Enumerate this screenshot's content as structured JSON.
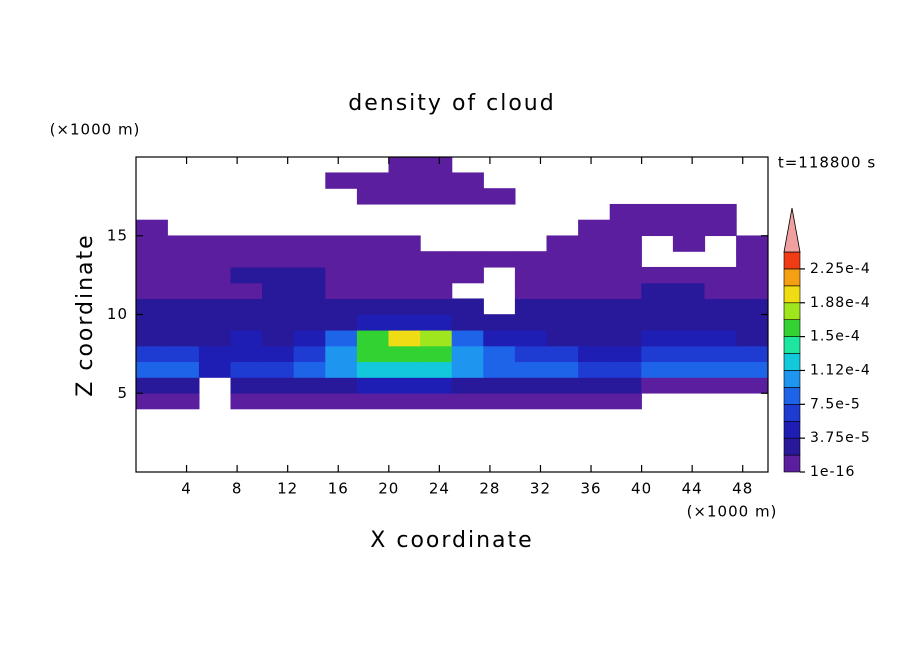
{
  "chart_data": {
    "type": "contour",
    "title": "density of cloud",
    "x_label": "X coordinate",
    "y_label": "Z coordinate",
    "x_unit": "(×1000 m)",
    "y_unit": "(×1000 m)",
    "time_label": "t=118800 s",
    "xlim": [
      0,
      50
    ],
    "ylim": [
      0,
      20
    ],
    "xticks": [
      4,
      8,
      12,
      16,
      20,
      24,
      28,
      32,
      36,
      40,
      44,
      48
    ],
    "yticks": [
      5,
      10,
      15
    ],
    "x": [
      1.25,
      3.75,
      6.25,
      8.75,
      11.25,
      13.75,
      16.25,
      18.75,
      21.25,
      23.75,
      26.25,
      28.75,
      31.25,
      33.75,
      36.25,
      38.75,
      41.25,
      43.75,
      46.25,
      48.75
    ],
    "y": [
      4.5,
      5.5,
      6.5,
      7.5,
      8.5,
      9.5,
      10.5,
      11.5,
      12.5,
      13.5,
      14.5,
      15.5,
      16.5,
      17.5,
      18.5,
      19.5
    ],
    "z": [
      [
        1e-05,
        1e-05,
        null,
        1e-05,
        1e-05,
        1e-05,
        1e-05,
        1e-05,
        1e-05,
        1e-05,
        1e-05,
        1e-05,
        1e-05,
        1e-05,
        1e-05,
        1e-05,
        null,
        null,
        null,
        null
      ],
      [
        3e-05,
        3e-05,
        null,
        2.5e-05,
        3e-05,
        3e-05,
        3.5e-05,
        4e-05,
        4e-05,
        4e-05,
        3.5e-05,
        3e-05,
        3e-05,
        3e-05,
        3e-05,
        2.5e-05,
        1e-05,
        1e-05,
        1e-05,
        1e-05
      ],
      [
        8e-05,
        8e-05,
        4e-05,
        6e-05,
        7e-05,
        8e-05,
        0.00011,
        0.00012,
        0.000125,
        0.00012,
        0.0001,
        8e-05,
        8e-05,
        8e-05,
        7e-05,
        6e-05,
        8e-05,
        9e-05,
        9e-05,
        8e-05
      ],
      [
        6e-05,
        6e-05,
        4e-05,
        5e-05,
        5.5e-05,
        7e-05,
        0.00011,
        0.00015,
        0.00016,
        0.000155,
        0.00011,
        8e-05,
        6e-05,
        6e-05,
        5e-05,
        4e-05,
        6e-05,
        7e-05,
        7e-05,
        6e-05
      ],
      [
        3.5e-05,
        3.5e-05,
        3e-05,
        4e-05,
        3e-05,
        5e-05,
        8e-05,
        0.00016,
        0.0002,
        0.000175,
        9e-05,
        5e-05,
        4e-05,
        3.5e-05,
        3e-05,
        3e-05,
        4e-05,
        4e-05,
        4e-05,
        3.5e-05
      ],
      [
        2.5e-05,
        2.5e-05,
        2.5e-05,
        2.5e-05,
        2e-05,
        3e-05,
        3.5e-05,
        4.5e-05,
        5e-05,
        4.5e-05,
        3.5e-05,
        2.5e-05,
        2.5e-05,
        3e-05,
        3e-05,
        2.5e-05,
        2.5e-05,
        2.5e-05,
        3e-05,
        3e-05
      ],
      [
        2e-05,
        2e-05,
        2e-05,
        2e-05,
        2e-05,
        2e-05,
        2.5e-05,
        2.5e-05,
        2.5e-05,
        2e-05,
        2e-05,
        null,
        2e-05,
        2e-05,
        2e-05,
        2e-05,
        2e-05,
        2e-05,
        2.5e-05,
        2.5e-05
      ],
      [
        1.5e-05,
        1.5e-05,
        1.5e-05,
        1.5e-05,
        2e-05,
        2e-05,
        1.5e-05,
        1.5e-05,
        1.5e-05,
        1.5e-05,
        null,
        null,
        1.5e-05,
        1.5e-05,
        1.5e-05,
        1.5e-05,
        2e-05,
        2e-05,
        1.5e-05,
        1.5e-05
      ],
      [
        1e-05,
        1.5e-05,
        1.5e-05,
        2e-05,
        2.5e-05,
        2e-05,
        1.5e-05,
        1.5e-05,
        1e-05,
        1e-05,
        1e-05,
        null,
        1e-05,
        1e-05,
        1e-05,
        1e-05,
        1e-05,
        1e-05,
        1e-05,
        1e-05
      ],
      [
        1e-05,
        1e-05,
        1e-05,
        1e-05,
        1.5e-05,
        1e-05,
        1e-05,
        1e-05,
        1e-05,
        1e-05,
        1e-05,
        1e-05,
        1e-05,
        1e-05,
        1e-05,
        1e-05,
        null,
        null,
        null,
        1e-05
      ],
      [
        1e-05,
        1e-05,
        1e-05,
        1e-05,
        1e-05,
        1e-05,
        1e-05,
        1e-05,
        1e-05,
        null,
        null,
        null,
        null,
        1e-05,
        1e-05,
        1e-05,
        null,
        1e-05,
        null,
        1e-05
      ],
      [
        1e-05,
        null,
        null,
        null,
        null,
        null,
        null,
        null,
        null,
        null,
        null,
        null,
        null,
        null,
        1e-05,
        1e-05,
        1e-05,
        1e-05,
        1e-05,
        null
      ],
      [
        null,
        null,
        null,
        null,
        null,
        null,
        null,
        null,
        null,
        null,
        null,
        null,
        null,
        null,
        null,
        1e-05,
        1e-05,
        1e-05,
        1e-05,
        null
      ],
      [
        null,
        null,
        null,
        null,
        null,
        null,
        null,
        1e-05,
        1e-05,
        1e-05,
        1e-05,
        1e-05,
        null,
        null,
        null,
        null,
        null,
        null,
        null,
        null
      ],
      [
        null,
        null,
        null,
        null,
        null,
        null,
        1e-05,
        1e-05,
        1e-05,
        1e-05,
        1e-05,
        null,
        null,
        null,
        null,
        null,
        null,
        null,
        null,
        null
      ],
      [
        null,
        null,
        null,
        null,
        null,
        null,
        null,
        null,
        1e-05,
        1e-05,
        null,
        null,
        null,
        null,
        null,
        null,
        null,
        null,
        null,
        null
      ]
    ],
    "levels": [
      1e-16,
      1.875e-05,
      3.75e-05,
      5.625e-05,
      7.5e-05,
      9.375e-05,
      0.0001125,
      0.00013125,
      0.00015,
      0.00016875,
      0.0001875,
      0.00020625,
      0.000225,
      0.00024375
    ],
    "colors": [
      "#5a1e9e",
      "#28189a",
      "#1e1eb4",
      "#1e3cd2",
      "#1e64e8",
      "#1e96f0",
      "#14c8dc",
      "#1ee6a0",
      "#32d232",
      "#a0e61e",
      "#f0dc14",
      "#f5a014",
      "#f03c14",
      "#f0a0a0"
    ],
    "colorbar_ticks": [
      {
        "value": 1e-16,
        "label": "1e-16"
      },
      {
        "value": 3.75e-05,
        "label": "3.75e-5"
      },
      {
        "value": 7.5e-05,
        "label": "7.5e-5"
      },
      {
        "value": 0.0001125,
        "label": "1.12e-4"
      },
      {
        "value": 0.00015,
        "label": "1.5e-4"
      },
      {
        "value": 0.0001875,
        "label": "1.88e-4"
      },
      {
        "value": 0.000225,
        "label": "2.25e-4"
      }
    ]
  }
}
